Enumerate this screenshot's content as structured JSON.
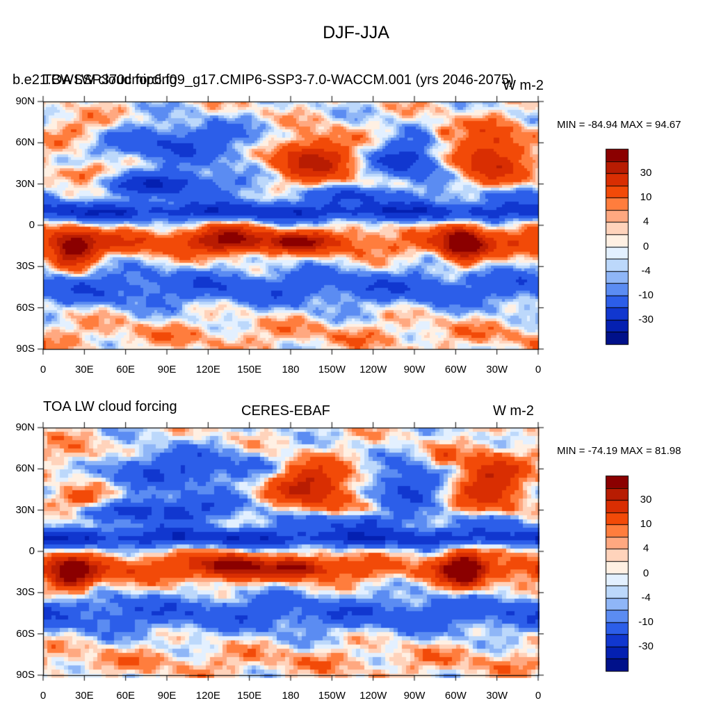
{
  "figure": {
    "title": "DJF-JJA"
  },
  "axes": {
    "lat_labels": [
      "90N",
      "60N",
      "30N",
      "0",
      "30S",
      "60S",
      "90S"
    ],
    "lon_labels": [
      "0",
      "30E",
      "60E",
      "90E",
      "120E",
      "150E",
      "180",
      "150W",
      "120W",
      "90W",
      "60W",
      "30W",
      "0"
    ]
  },
  "colorbar": {
    "labels": [
      "30",
      "10",
      "4",
      "0",
      "-4",
      "-10",
      "-30"
    ],
    "colors": [
      "#8b0000",
      "#b81c02",
      "#d92e02",
      "#f24a08",
      "#ff7d3d",
      "#ffa880",
      "#ffd3bb",
      "#fff0e3",
      "#e3f0ff",
      "#bcd8fb",
      "#8fb6f7",
      "#5b8cf2",
      "#2c5ee9",
      "#1137cf",
      "#0420b1",
      "#00118a"
    ]
  },
  "panels": [
    {
      "left_title": "b.e21.BWSSP370cmip6.f09_g17.CMIP6-SSP3-7.0-WACCM.001 (yrs 2046-2075)",
      "left_title_overlay": "TOA LW cloud forcing",
      "center_title": "",
      "units": "W m-2",
      "stats": "MIN = -84.94 MAX =  94.67",
      "min": -84.94,
      "max": 94.67
    },
    {
      "left_title": "TOA LW cloud forcing",
      "left_title_overlay": "",
      "center_title": "CERES-EBAF",
      "units": "W m-2",
      "stats": "MIN = -74.19 MAX =  81.98",
      "min": -74.19,
      "max": 81.98
    }
  ]
}
